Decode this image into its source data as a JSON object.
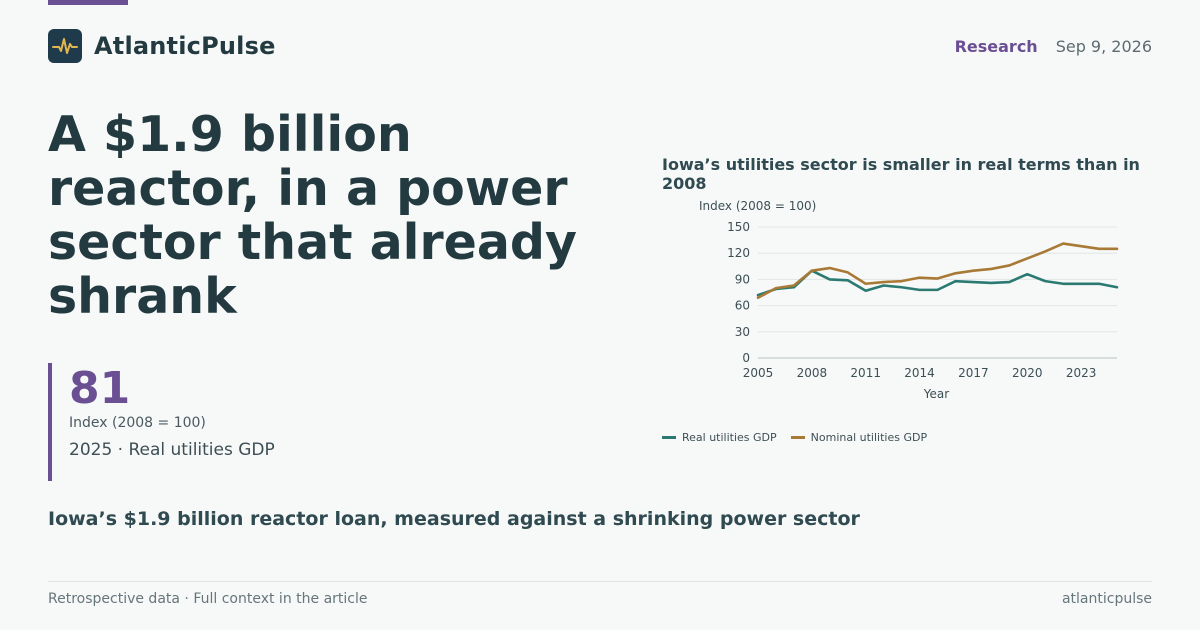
{
  "brand": {
    "name": "AtlanticPulse",
    "icon": "pulse-icon"
  },
  "header": {
    "section": "Research",
    "date": "Sep 9, 2026"
  },
  "headline": "A $1.9 billion reactor, in a power sector that already shrank",
  "kpi": {
    "value": "81",
    "unit": "Index (2008 = 100)",
    "caption": "2025 · Real utilities GDP"
  },
  "subhead": "Iowa’s $1.9 billion reactor loan, measured against a shrinking power sector",
  "footer": {
    "note": "Retrospective data · Full context in the article",
    "site": "atlanticpulse"
  },
  "colors": {
    "accent": "#6b4f93",
    "real": "#2a7a72",
    "nominal": "#a87a35"
  },
  "chart_data": {
    "type": "line",
    "title": "Iowa’s utilities sector is smaller in real terms than in 2008",
    "ylabel": "Index (2008 = 100)",
    "xlabel": "Year",
    "ylim": [
      0,
      150
    ],
    "yticks": [
      0,
      30,
      60,
      90,
      120,
      150
    ],
    "xlim": [
      2005,
      2025
    ],
    "xticks": [
      2005,
      2008,
      2011,
      2014,
      2017,
      2020,
      2023
    ],
    "grid": true,
    "legend_position": "bottom",
    "x": [
      2005,
      2006,
      2007,
      2008,
      2009,
      2010,
      2011,
      2012,
      2013,
      2014,
      2015,
      2016,
      2017,
      2018,
      2019,
      2020,
      2021,
      2022,
      2023,
      2024,
      2025
    ],
    "series": [
      {
        "name": "Real utilities GDP",
        "color": "#2a7a72",
        "values": [
          72,
          79,
          81,
          100,
          90,
          89,
          77,
          83,
          81,
          78,
          78,
          88,
          87,
          86,
          87,
          96,
          88,
          85,
          85,
          85,
          81
        ]
      },
      {
        "name": "Nominal utilities GDP",
        "color": "#a87a35",
        "values": [
          69,
          80,
          83,
          100,
          103,
          98,
          85,
          87,
          88,
          92,
          91,
          97,
          100,
          102,
          106,
          114,
          122,
          131,
          128,
          125,
          125
        ]
      }
    ]
  }
}
